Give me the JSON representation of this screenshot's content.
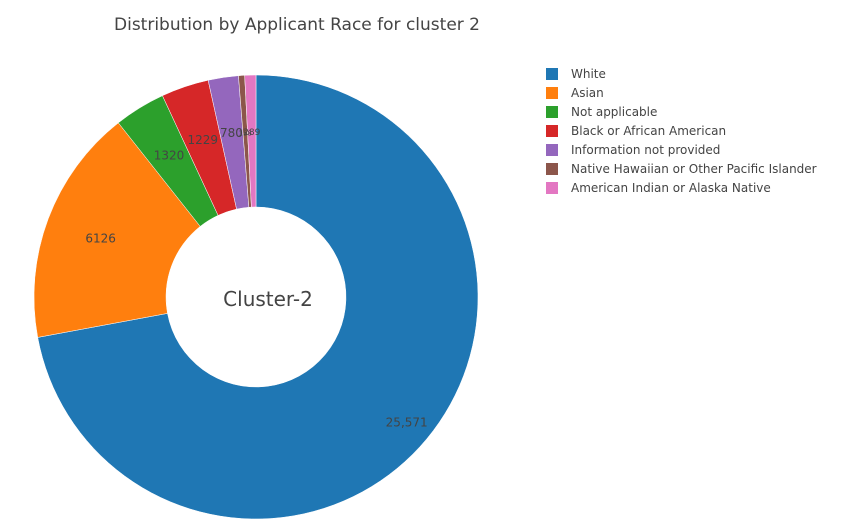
{
  "chart_data": {
    "type": "pie",
    "title": "Distribution by Applicant Race for cluster 2",
    "center_label": "Cluster-2",
    "hole": true,
    "legend_position": "right",
    "slices": [
      {
        "label": "White",
        "value": 25571,
        "display": "25,571",
        "color": "#1f77b4"
      },
      {
        "label": "Asian",
        "value": 6126,
        "display": "6126",
        "color": "#ff7f0e"
      },
      {
        "label": "Not applicable",
        "value": 1320,
        "display": "1320",
        "color": "#2ca02c"
      },
      {
        "label": "Black or African American",
        "value": 1229,
        "display": "1229",
        "color": "#d62728"
      },
      {
        "label": "Information not provided",
        "value": 780,
        "display": "780",
        "color": "#9467bd"
      },
      {
        "label": "Native Hawaiian or Other Pacific Islander",
        "value": 158,
        "display": "158",
        "color": "#8c564b"
      },
      {
        "label": "American Indian or Alaska Native",
        "value": 289,
        "display": "289",
        "color": "#e377c2"
      }
    ]
  }
}
